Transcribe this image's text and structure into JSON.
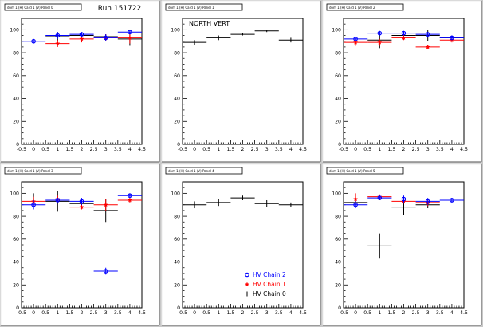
{
  "run_label": "Run 151722",
  "colors": {
    "HV Chain 2": "#0000ff",
    "HV Chain 1": "#ff0000",
    "HV Chain 0": "#000000"
  },
  "legend": {
    "entries": [
      {
        "label": "HV Chain 2",
        "marker": "circle"
      },
      {
        "label": "HV Chain 1",
        "marker": "star"
      },
      {
        "label": "HV Chain 0",
        "marker": "cross"
      }
    ]
  },
  "chart_data": [
    {
      "type": "scatter",
      "title": "dom 1 (H) Card 1 (V) Panel 0",
      "xlim": [
        -0.5,
        4.5
      ],
      "ylim": [
        0,
        110
      ],
      "xticks": [
        -0.5,
        0,
        0.5,
        1,
        1.5,
        2,
        2.5,
        3,
        3.5,
        4,
        4.5
      ],
      "yticks": [
        0,
        20,
        40,
        60,
        80,
        100
      ],
      "series": [
        {
          "name": "HV Chain 2",
          "marker": "circle",
          "points": [
            {
              "x": 0,
              "y": 90,
              "xerr": 0.5,
              "yerr": 2
            },
            {
              "x": 1,
              "y": 95,
              "xerr": 0.5,
              "yerr": 3
            },
            {
              "x": 2,
              "y": 96,
              "xerr": 0.5,
              "yerr": 2
            },
            {
              "x": 3,
              "y": 93,
              "xerr": 0.5,
              "yerr": 3
            },
            {
              "x": 4,
              "y": 98,
              "xerr": 0.5,
              "yerr": 2
            }
          ]
        },
        {
          "name": "HV Chain 1",
          "marker": "star",
          "points": [
            {
              "x": 1,
              "y": 88,
              "xerr": 0.5,
              "yerr": 3
            },
            {
              "x": 2,
              "y": 92,
              "xerr": 0.5,
              "yerr": 3
            },
            {
              "x": 3,
              "y": 93,
              "xerr": 0.5,
              "yerr": 3
            },
            {
              "x": 4,
              "y": 93,
              "xerr": 0.5,
              "yerr": 5
            }
          ]
        },
        {
          "name": "HV Chain 0",
          "marker": "cross",
          "points": [
            {
              "x": 1,
              "y": 94,
              "xerr": 0.5,
              "yerr": 4
            },
            {
              "x": 2,
              "y": 95,
              "xerr": 0.5,
              "yerr": 2
            },
            {
              "x": 3,
              "y": 94,
              "xerr": 0.5,
              "yerr": 2
            },
            {
              "x": 4,
              "y": 92,
              "xerr": 0.5,
              "yerr": 6
            }
          ]
        }
      ]
    },
    {
      "type": "scatter",
      "title": "dom 1 (H) Card 1 (V) Panel 1",
      "annotation": "NORTH VERT",
      "xlim": [
        -0.5,
        4.5
      ],
      "ylim": [
        0,
        110
      ],
      "xticks": [
        -0.5,
        0,
        0.5,
        1,
        1.5,
        2,
        2.5,
        3,
        3.5,
        4,
        4.5
      ],
      "yticks": [
        0,
        20,
        40,
        60,
        80,
        100
      ],
      "series": [
        {
          "name": "HV Chain 0",
          "marker": "cross",
          "points": [
            {
              "x": 0,
              "y": 89,
              "xerr": 0.5,
              "yerr": 2
            },
            {
              "x": 1,
              "y": 93,
              "xerr": 0.5,
              "yerr": 2
            },
            {
              "x": 2,
              "y": 96,
              "xerr": 0.5,
              "yerr": 1
            },
            {
              "x": 3,
              "y": 99,
              "xerr": 0.5,
              "yerr": 1
            },
            {
              "x": 4,
              "y": 91,
              "xerr": 0.5,
              "yerr": 2
            }
          ]
        }
      ]
    },
    {
      "type": "scatter",
      "title": "dom 1 (H) Card 1 (V) Panel 2",
      "xlim": [
        -0.5,
        4.5
      ],
      "ylim": [
        0,
        110
      ],
      "xticks": [
        -0.5,
        0,
        0.5,
        1,
        1.5,
        2,
        2.5,
        3,
        3.5,
        4,
        4.5
      ],
      "yticks": [
        0,
        20,
        40,
        60,
        80,
        100
      ],
      "series": [
        {
          "name": "HV Chain 2",
          "marker": "circle",
          "points": [
            {
              "x": 0,
              "y": 92,
              "xerr": 0.5,
              "yerr": 2
            },
            {
              "x": 1,
              "y": 97,
              "xerr": 0.5,
              "yerr": 2
            },
            {
              "x": 2,
              "y": 97,
              "xerr": 0.5,
              "yerr": 2
            },
            {
              "x": 3,
              "y": 96,
              "xerr": 0.5,
              "yerr": 2
            },
            {
              "x": 4,
              "y": 93,
              "xerr": 0.5,
              "yerr": 2
            }
          ]
        },
        {
          "name": "HV Chain 1",
          "marker": "star",
          "points": [
            {
              "x": 0,
              "y": 89,
              "xerr": 0.5,
              "yerr": 3
            },
            {
              "x": 1,
              "y": 89,
              "xerr": 0.5,
              "yerr": 3
            },
            {
              "x": 2,
              "y": 93,
              "xerr": 0.5,
              "yerr": 2
            },
            {
              "x": 3,
              "y": 85,
              "xerr": 0.5,
              "yerr": 2
            },
            {
              "x": 4,
              "y": 91,
              "xerr": 0.5,
              "yerr": 2
            }
          ]
        },
        {
          "name": "HV Chain 0",
          "marker": "cross",
          "points": [
            {
              "x": 1,
              "y": 91,
              "xerr": 0.5,
              "yerr": 7
            },
            {
              "x": 2,
              "y": 95,
              "xerr": 0.5,
              "yerr": 2
            },
            {
              "x": 3,
              "y": 95,
              "xerr": 0.5,
              "yerr": 5
            },
            {
              "x": 4,
              "y": 93,
              "xerr": 0.5,
              "yerr": 2
            }
          ]
        }
      ]
    },
    {
      "type": "scatter",
      "title": "dom 1 (H) Card 1 (V) Panel 3",
      "xlim": [
        -0.5,
        4.5
      ],
      "ylim": [
        0,
        110
      ],
      "xticks": [
        -0.5,
        0,
        0.5,
        1,
        1.5,
        2,
        2.5,
        3,
        3.5,
        4,
        4.5
      ],
      "yticks": [
        0,
        20,
        40,
        60,
        80,
        100
      ],
      "series": [
        {
          "name": "HV Chain 2",
          "marker": "circle",
          "points": [
            {
              "x": 0,
              "y": 90,
              "xerr": 0.5,
              "yerr": 4
            },
            {
              "x": 1,
              "y": 94,
              "xerr": 0.5,
              "yerr": 2
            },
            {
              "x": 2,
              "y": 93,
              "xerr": 0.5,
              "yerr": 3
            },
            {
              "x": 3,
              "y": 32,
              "xerr": 0.5,
              "yerr": 3
            },
            {
              "x": 4,
              "y": 98,
              "xerr": 0.5,
              "yerr": 2
            }
          ]
        },
        {
          "name": "HV Chain 1",
          "marker": "star",
          "points": [
            {
              "x": 0,
              "y": 93,
              "xerr": 0.5,
              "yerr": 4
            },
            {
              "x": 1,
              "y": 95,
              "xerr": 0.5,
              "yerr": 3
            },
            {
              "x": 2,
              "y": 88,
              "xerr": 0.5,
              "yerr": 2
            },
            {
              "x": 3,
              "y": 90,
              "xerr": 0.5,
              "yerr": 5
            },
            {
              "x": 4,
              "y": 94,
              "xerr": 0.5,
              "yerr": 2
            }
          ]
        },
        {
          "name": "HV Chain 0",
          "marker": "cross",
          "points": [
            {
              "x": 0,
              "y": 95,
              "xerr": 0.5,
              "yerr": 5
            },
            {
              "x": 1,
              "y": 93,
              "xerr": 0.5,
              "yerr": 9
            },
            {
              "x": 2,
              "y": 91,
              "xerr": 0.5,
              "yerr": 3
            },
            {
              "x": 3,
              "y": 85,
              "xerr": 0.5,
              "yerr": 10
            }
          ]
        }
      ]
    },
    {
      "type": "scatter",
      "title": "dom 1 (H) Card 1 (V) Panel 4",
      "xlim": [
        -0.5,
        4.5
      ],
      "ylim": [
        0,
        110
      ],
      "xticks": [
        -0.5,
        0,
        0.5,
        1,
        1.5,
        2,
        2.5,
        3,
        3.5,
        4,
        4.5
      ],
      "yticks": [
        0,
        20,
        40,
        60,
        80,
        100
      ],
      "show_legend": true,
      "series": [
        {
          "name": "HV Chain 0",
          "marker": "cross",
          "points": [
            {
              "x": 0,
              "y": 90,
              "xerr": 0.5,
              "yerr": 3
            },
            {
              "x": 1,
              "y": 92,
              "xerr": 0.5,
              "yerr": 3
            },
            {
              "x": 2,
              "y": 96,
              "xerr": 0.5,
              "yerr": 2
            },
            {
              "x": 3,
              "y": 91,
              "xerr": 0.5,
              "yerr": 3
            },
            {
              "x": 4,
              "y": 90,
              "xerr": 0.5,
              "yerr": 2
            }
          ]
        }
      ]
    },
    {
      "type": "scatter",
      "title": "dom 1 (H) Card 1 (V) Panel 5",
      "xlim": [
        -0.5,
        4.5
      ],
      "ylim": [
        0,
        110
      ],
      "xticks": [
        -0.5,
        0,
        0.5,
        1,
        1.5,
        2,
        2.5,
        3,
        3.5,
        4,
        4.5
      ],
      "yticks": [
        0,
        20,
        40,
        60,
        80,
        100
      ],
      "series": [
        {
          "name": "HV Chain 2",
          "marker": "circle",
          "points": [
            {
              "x": 0,
              "y": 90,
              "xerr": 0.5,
              "yerr": 3
            },
            {
              "x": 1,
              "y": 96,
              "xerr": 0.5,
              "yerr": 2
            },
            {
              "x": 2,
              "y": 95,
              "xerr": 0.5,
              "yerr": 3
            },
            {
              "x": 3,
              "y": 93,
              "xerr": 0.5,
              "yerr": 3
            },
            {
              "x": 4,
              "y": 94,
              "xerr": 0.5,
              "yerr": 2
            }
          ]
        },
        {
          "name": "HV Chain 1",
          "marker": "star",
          "points": [
            {
              "x": 0,
              "y": 95,
              "xerr": 0.5,
              "yerr": 5
            },
            {
              "x": 1,
              "y": 97,
              "xerr": 0.5,
              "yerr": 2
            },
            {
              "x": 2,
              "y": 93,
              "xerr": 0.5,
              "yerr": 2
            },
            {
              "x": 3,
              "y": 92,
              "xerr": 0.5,
              "yerr": 3
            }
          ]
        },
        {
          "name": "HV Chain 0",
          "marker": "cross",
          "points": [
            {
              "x": 0,
              "y": 92,
              "xerr": 0.5,
              "yerr": 4
            },
            {
              "x": 1,
              "y": 54,
              "xerr": 0.5,
              "yerr": 11
            },
            {
              "x": 2,
              "y": 88,
              "xerr": 0.5,
              "yerr": 7
            },
            {
              "x": 3,
              "y": 90,
              "xerr": 0.5,
              "yerr": 3
            }
          ]
        }
      ]
    }
  ]
}
